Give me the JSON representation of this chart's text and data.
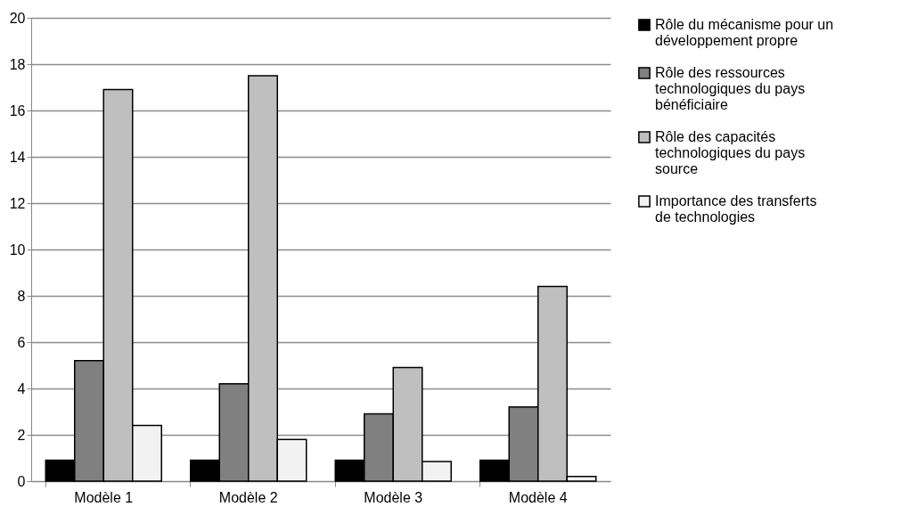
{
  "chart_data": {
    "type": "bar",
    "categories": [
      "Modèle 1",
      "Modèle 2",
      "Modèle 3",
      "Modèle 4"
    ],
    "series": [
      {
        "name": "Rôle du mécanisme pour un développement propre",
        "color": "#000000",
        "values": [
          0.9,
          0.9,
          0.9,
          0.9
        ]
      },
      {
        "name": "Rôle des ressources technologiques du pays bénéficiaire",
        "color": "#808080",
        "values": [
          5.2,
          4.2,
          2.9,
          3.2
        ]
      },
      {
        "name": "Rôle des capacités technologiques du pays source",
        "color": "#bfbfbf",
        "values": [
          16.9,
          17.5,
          4.9,
          8.4
        ]
      },
      {
        "name": "Importance des transferts de technologies",
        "color": "#f2f2f2",
        "values": [
          2.4,
          1.8,
          0.85,
          0.2
        ]
      }
    ],
    "ylim": [
      0,
      20
    ],
    "yticks": [
      0,
      2,
      4,
      6,
      8,
      10,
      12,
      14,
      16,
      18,
      20
    ],
    "grid": "y",
    "legend": "right"
  }
}
